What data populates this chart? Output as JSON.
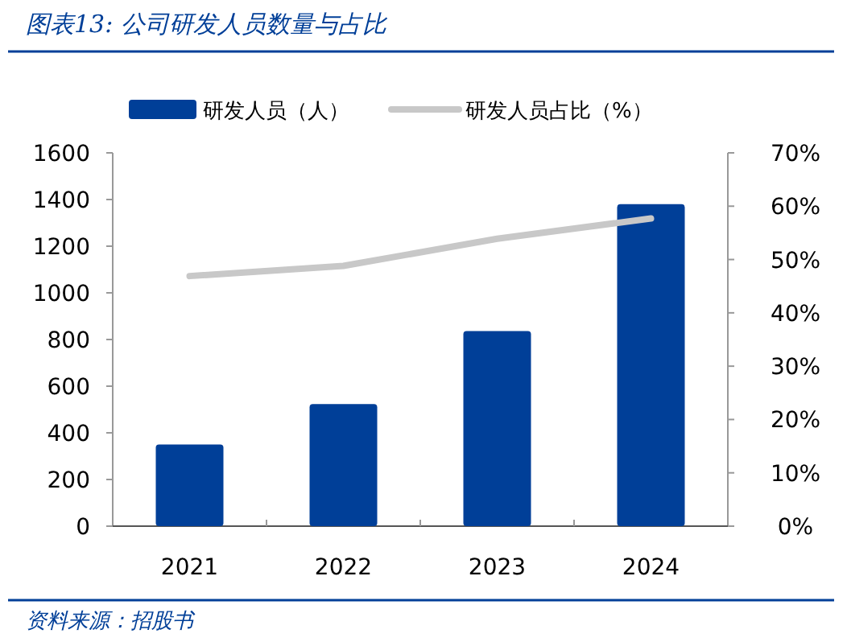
{
  "chart_data": {
    "type": "bar",
    "title": "图表13: 公司研发人员数量与占比",
    "categories": [
      "2021",
      "2022",
      "2023",
      "2024"
    ],
    "series": [
      {
        "name": "研发人员（人）",
        "color": "#003f98",
        "values": [
          350,
          523,
          836,
          1380
        ]
      },
      {
        "name": "研发人员占比（%）",
        "type": "line",
        "axis": "y2",
        "color": "#c8c8c8",
        "values": [
          46.9,
          48.8,
          53.9,
          57.7
        ]
      }
    ],
    "ylim": [
      0,
      1600
    ],
    "yticks": [
      0,
      200,
      400,
      600,
      800,
      1000,
      1200,
      1400,
      1600
    ],
    "y2lim": [
      0,
      70
    ],
    "y2ticks": [
      {
        "value": 0,
        "label": "0%"
      },
      {
        "value": 10,
        "label": "10%"
      },
      {
        "value": 20,
        "label": "20%"
      },
      {
        "value": 30,
        "label": "30%"
      },
      {
        "value": 40,
        "label": "40%"
      },
      {
        "value": 50,
        "label": "50%"
      },
      {
        "value": 60,
        "label": "60%"
      },
      {
        "value": 70,
        "label": "70%"
      }
    ],
    "legend": "top",
    "grid": false,
    "annotations": [
      "资料来源：招股书"
    ]
  }
}
